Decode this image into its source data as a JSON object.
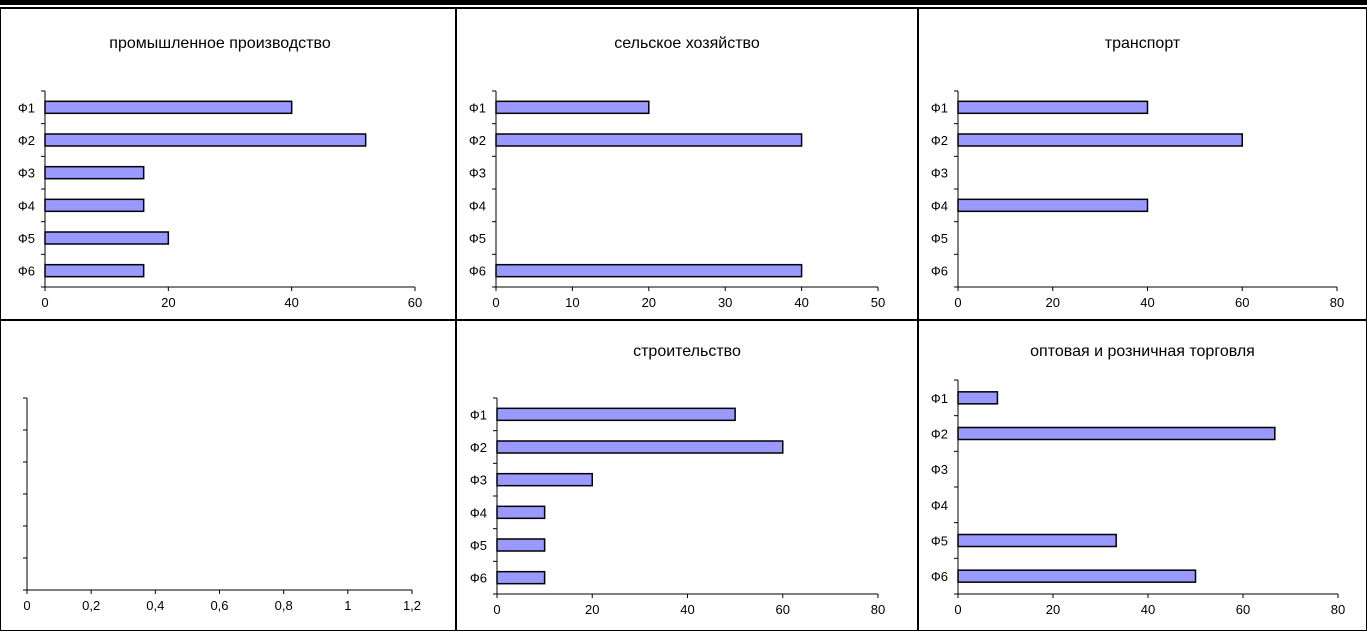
{
  "chart_data": [
    {
      "type": "bar",
      "title": "промышленное производство",
      "categories": [
        "Ф1",
        "Ф2",
        "Ф3",
        "Ф4",
        "Ф5",
        "Ф6"
      ],
      "values": [
        40,
        52,
        16,
        16,
        20,
        16
      ],
      "xlim": [
        0,
        60
      ],
      "xticks": [
        0,
        20,
        40,
        60
      ],
      "xtick_labels": [
        "0",
        "20",
        "40",
        "60"
      ]
    },
    {
      "type": "bar",
      "title": "сельское хозяйство",
      "categories": [
        "Ф1",
        "Ф2",
        "Ф3",
        "Ф4",
        "Ф5",
        "Ф6"
      ],
      "values": [
        20,
        40,
        null,
        null,
        null,
        40
      ],
      "xlim": [
        0,
        50
      ],
      "xticks": [
        0,
        10,
        20,
        30,
        40,
        50
      ],
      "xtick_labels": [
        "0",
        "10",
        "20",
        "30",
        "40",
        "50"
      ]
    },
    {
      "type": "bar",
      "title": "транспорт",
      "categories": [
        "Ф1",
        "Ф2",
        "Ф3",
        "Ф4",
        "Ф5",
        "Ф6"
      ],
      "values": [
        40,
        60,
        null,
        40,
        null,
        null
      ],
      "xlim": [
        0,
        80
      ],
      "xticks": [
        0,
        20,
        40,
        60,
        80
      ],
      "xtick_labels": [
        "0",
        "20",
        "40",
        "60",
        "80"
      ]
    },
    {
      "type": "bar",
      "title": "",
      "categories": [
        "",
        "",
        "",
        "",
        "",
        ""
      ],
      "values": [
        null,
        null,
        null,
        null,
        null,
        null
      ],
      "xlim": [
        0,
        1.2
      ],
      "xticks": [
        0,
        0.2,
        0.4,
        0.6,
        0.8,
        1,
        1.2
      ],
      "xtick_labels": [
        "0",
        "0,2",
        "0,4",
        "0,6",
        "0,8",
        "1",
        "1,2"
      ]
    },
    {
      "type": "bar",
      "title": "строительство",
      "categories": [
        "Ф1",
        "Ф2",
        "Ф3",
        "Ф4",
        "Ф5",
        "Ф6"
      ],
      "values": [
        50,
        60,
        20,
        10,
        10,
        10
      ],
      "xlim": [
        0,
        80
      ],
      "xticks": [
        0,
        20,
        40,
        60,
        80
      ],
      "xtick_labels": [
        "0",
        "20",
        "40",
        "60",
        "80"
      ]
    },
    {
      "type": "bar",
      "title": "оптовая и розничная торговля",
      "categories": [
        "Ф1",
        "Ф2",
        "Ф3",
        "Ф4",
        "Ф5",
        "Ф6"
      ],
      "values": [
        8.3,
        66.7,
        null,
        null,
        33.3,
        50
      ],
      "xlim": [
        0,
        80
      ],
      "xticks": [
        0,
        20,
        40,
        60,
        80
      ],
      "xtick_labels": [
        "0",
        "20",
        "40",
        "60",
        "80"
      ]
    }
  ],
  "colors": {
    "bar_fill": "#9999ff",
    "bar_stroke": "#000000",
    "axis": "#000000",
    "border": "#000000"
  }
}
